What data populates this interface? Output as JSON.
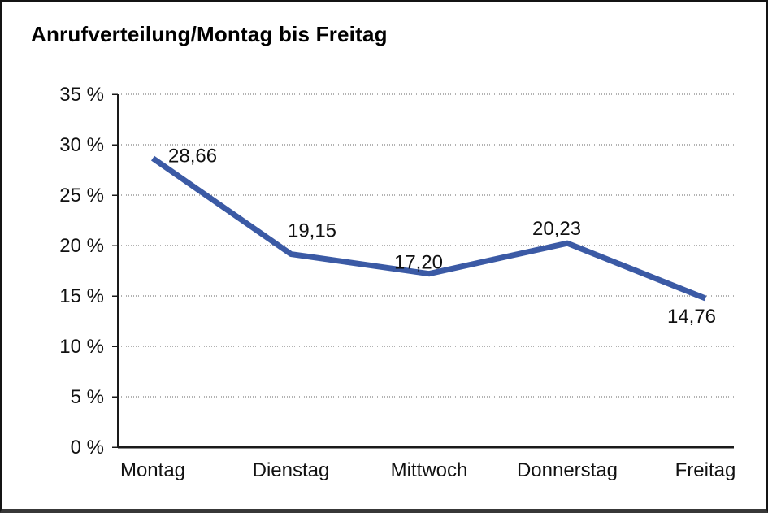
{
  "chart_data": {
    "type": "line",
    "title": "Anrufverteilung/Montag bis Freitag",
    "categories": [
      "Montag",
      "Dienstag",
      "Mittwoch",
      "Donnerstag",
      "Freitag"
    ],
    "values": [
      28.66,
      19.15,
      17.2,
      20.23,
      14.76
    ],
    "point_labels": [
      "28,66",
      "19,15",
      "17,20",
      "20,23",
      "14,76"
    ],
    "xlabel": "",
    "ylabel": "",
    "ylim": [
      0,
      35
    ],
    "ytick_step": 5,
    "ytick_labels": [
      "0 %",
      "5 %",
      "10 %",
      "15 %",
      "20 %",
      "25 %",
      "30 %",
      "35 %"
    ],
    "grid": "horizontal-dotted",
    "legend": "none",
    "colors": {
      "line": "#3B5AA5",
      "text": "#111111",
      "grid": "#666666",
      "axis": "#1A1A1A",
      "background": "#FFFFFF",
      "frame": "#141414",
      "frame_bottom": "#383838"
    }
  }
}
